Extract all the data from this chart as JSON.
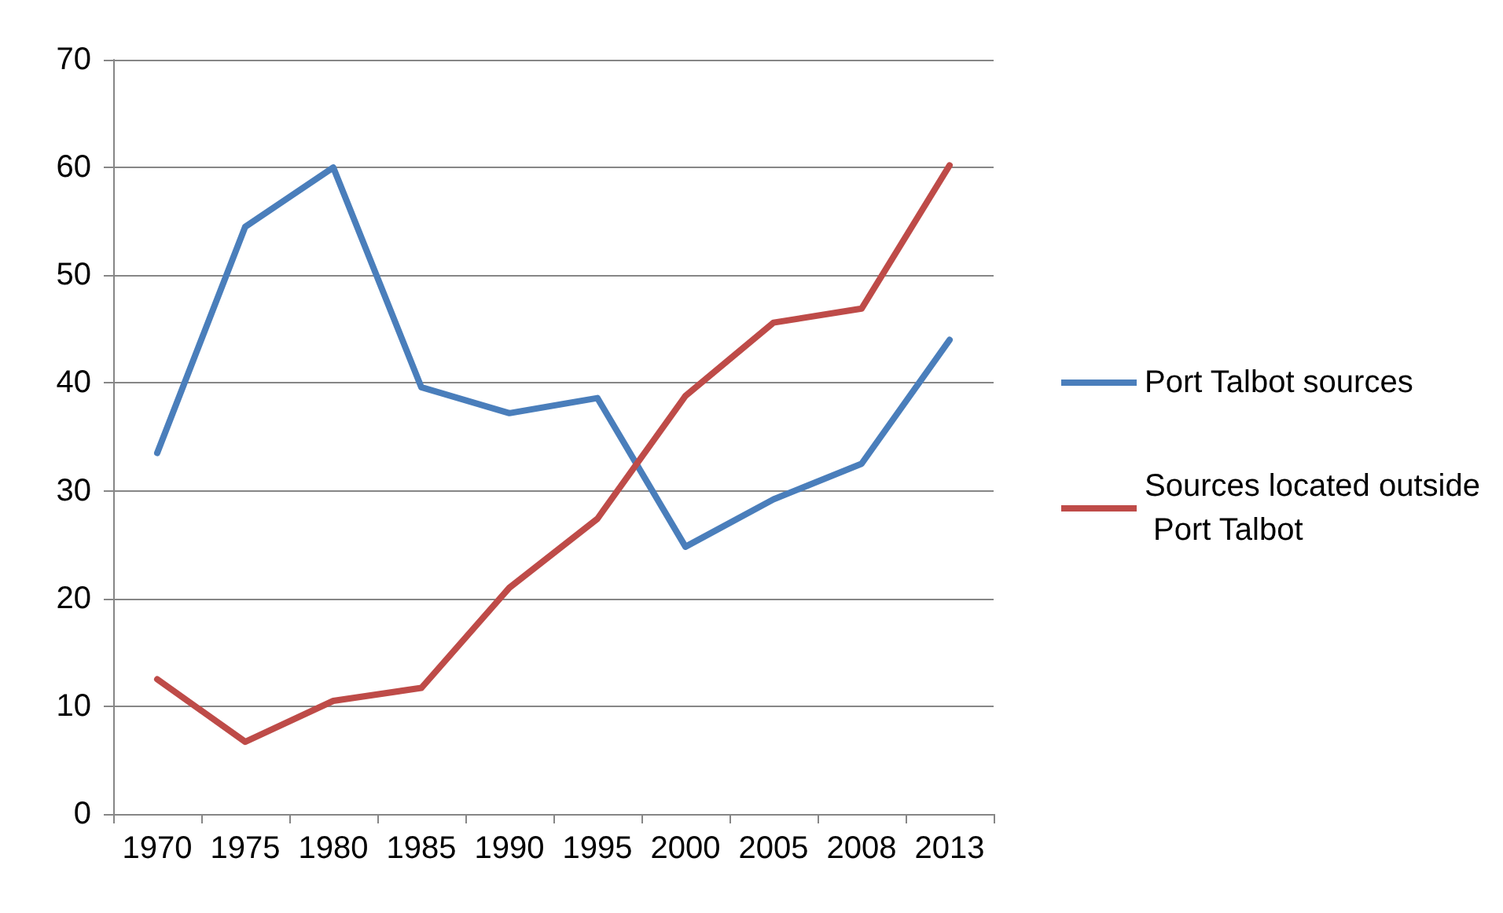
{
  "chart_data": {
    "type": "line",
    "categories": [
      "1970",
      "1975",
      "1980",
      "1985",
      "1990",
      "1995",
      "2000",
      "2005",
      "2008",
      "2013"
    ],
    "series": [
      {
        "name": "Port Talbot sources",
        "color": "#4a7ebb",
        "values": [
          33.5,
          54.5,
          60,
          39.6,
          37.2,
          38.6,
          24.8,
          29.2,
          32.5,
          44
        ]
      },
      {
        "name": "Sources located outside Port Talbot",
        "color": "#be4b48",
        "values": [
          12.5,
          6.7,
          10.5,
          11.7,
          21,
          27.4,
          38.8,
          45.6,
          46.9,
          60.2
        ]
      }
    ],
    "ylim": [
      0,
      70
    ],
    "yticks": [
      0,
      10,
      20,
      30,
      40,
      50,
      60,
      70
    ],
    "grid": "y",
    "legend": "right",
    "marker": "none",
    "line_style": "solid"
  }
}
